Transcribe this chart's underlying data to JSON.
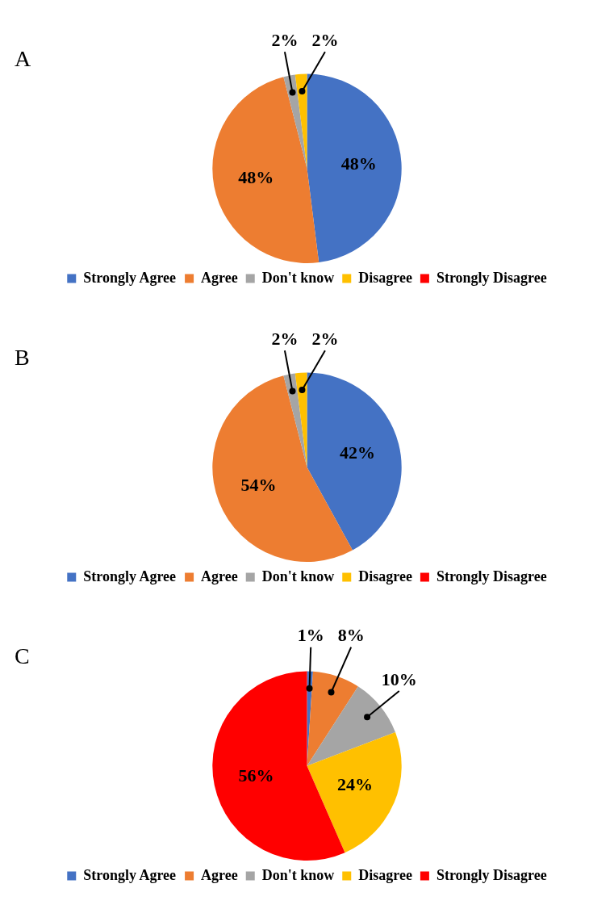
{
  "chart_data": [
    {
      "type": "pie",
      "title": "A",
      "categories": [
        "Strongly Agree",
        "Agree",
        "Don't know",
        "Disagree",
        "Strongly Disagree"
      ],
      "values": [
        48,
        48,
        2,
        2,
        0
      ],
      "colors": [
        "#4472c4",
        "#ed7d31",
        "#a5a5a5",
        "#ffc000",
        "#ff0000"
      ],
      "value_labels": [
        "48%",
        "48%",
        "2%",
        "2%",
        null
      ],
      "legend": "bottom"
    },
    {
      "type": "pie",
      "title": "B",
      "categories": [
        "Strongly Agree",
        "Agree",
        "Don't know",
        "Disagree",
        "Strongly Disagree"
      ],
      "values": [
        42,
        54,
        2,
        2,
        0
      ],
      "colors": [
        "#4472c4",
        "#ed7d31",
        "#a5a5a5",
        "#ffc000",
        "#ff0000"
      ],
      "value_labels": [
        "42%",
        "54%",
        "2%",
        "2%",
        null
      ],
      "legend": "bottom"
    },
    {
      "type": "pie",
      "title": "C",
      "categories": [
        "Strongly Agree",
        "Agree",
        "Don't know",
        "Disagree",
        "Strongly Disagree"
      ],
      "values": [
        1,
        8,
        10,
        24,
        56
      ],
      "colors": [
        "#4472c4",
        "#ed7d31",
        "#a5a5a5",
        "#ffc000",
        "#ff0000"
      ],
      "value_labels": [
        "1%",
        "8%",
        "10%",
        "24%",
        "56%"
      ],
      "legend": "bottom"
    }
  ]
}
